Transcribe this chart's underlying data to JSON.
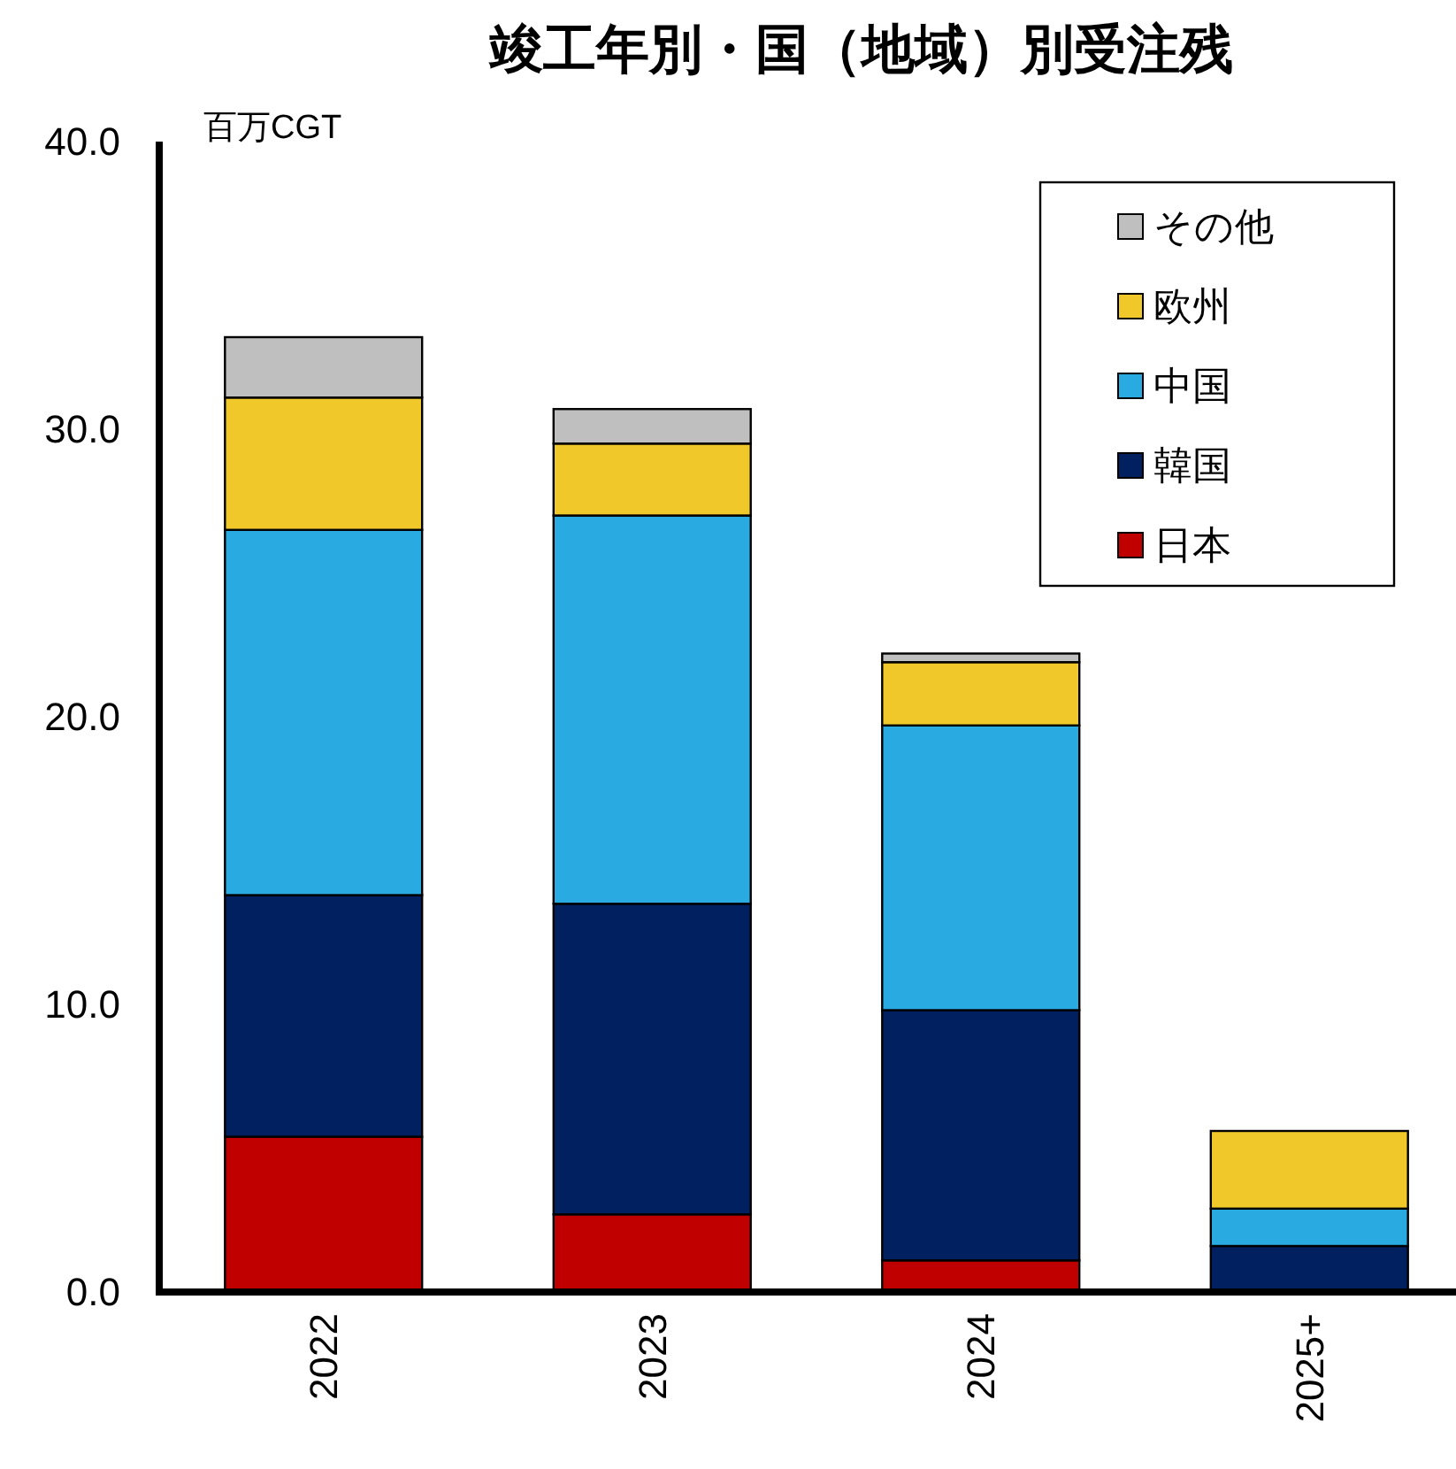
{
  "chart_data": {
    "type": "bar",
    "title": "竣工年別・国（地域）別受注残",
    "ylabel": "百万CGT",
    "categories": [
      "2022",
      "2023",
      "2024",
      "2025+"
    ],
    "stacked": true,
    "ylim": [
      0,
      40
    ],
    "yticks": [
      {
        "value": 0,
        "label": "0.0"
      },
      {
        "value": 10,
        "label": "10.0"
      },
      {
        "value": 20,
        "label": "20.0"
      },
      {
        "value": 30,
        "label": "30.0"
      },
      {
        "value": 40,
        "label": "40.0"
      }
    ],
    "grid": false,
    "legend": "top right",
    "series": [
      {
        "name": "日本",
        "color": "#c00000",
        "values": [
          5.4,
          2.7,
          1.1,
          0
        ]
      },
      {
        "name": "韓国",
        "color": "#002060",
        "values": [
          8.4,
          10.8,
          8.7,
          1.6
        ]
      },
      {
        "name": "中国",
        "color": "#29abe2",
        "values": [
          12.7,
          13.5,
          9.9,
          1.3
        ]
      },
      {
        "name": "欧州",
        "color": "#f0c82a",
        "values": [
          4.6,
          2.5,
          2.2,
          2.7
        ]
      },
      {
        "name": "その他",
        "color": "#bfbfbf",
        "values": [
          2.1,
          1.2,
          0.3,
          0
        ]
      }
    ]
  }
}
